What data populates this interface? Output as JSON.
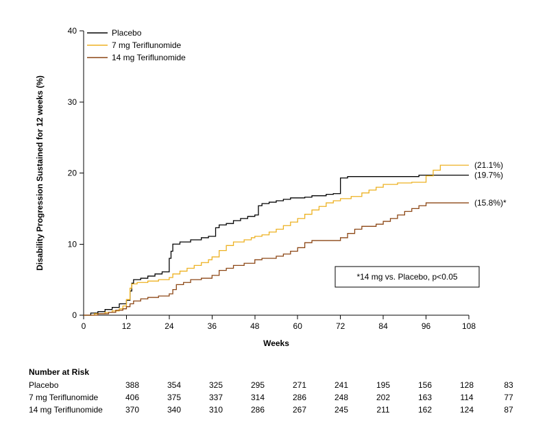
{
  "chart_data": {
    "type": "line",
    "subtype": "kaplan-meier-step",
    "title": "",
    "xlabel": "Weeks",
    "ylabel": "Disability Progression Sustained for 12 weeks (%)",
    "xlim": [
      0,
      108
    ],
    "ylim": [
      0,
      40
    ],
    "xticks": [
      0,
      12,
      24,
      36,
      48,
      60,
      72,
      84,
      96,
      108
    ],
    "yticks": [
      0,
      10,
      20,
      30,
      40
    ],
    "grid": false,
    "legend_position": "top-left-inside",
    "annotation": "*14 mg vs. Placebo, p<0.05",
    "series": [
      {
        "name": "Placebo",
        "color": "#000000",
        "end_label": "(19.7%)",
        "final_value": 19.7,
        "points": [
          [
            0,
            0
          ],
          [
            2,
            0.3
          ],
          [
            4,
            0.5
          ],
          [
            6,
            0.8
          ],
          [
            8,
            1.1
          ],
          [
            10,
            1.6
          ],
          [
            12,
            2.1
          ],
          [
            13,
            3.4
          ],
          [
            13.5,
            4.5
          ],
          [
            14,
            5.0
          ],
          [
            16,
            5.2
          ],
          [
            18,
            5.5
          ],
          [
            20,
            5.8
          ],
          [
            22,
            6.1
          ],
          [
            24,
            8.0
          ],
          [
            24.5,
            9.0
          ],
          [
            25,
            10.0
          ],
          [
            27,
            10.3
          ],
          [
            30,
            10.6
          ],
          [
            33,
            10.9
          ],
          [
            35,
            11.1
          ],
          [
            37,
            12.3
          ],
          [
            38,
            12.7
          ],
          [
            40,
            12.9
          ],
          [
            42,
            13.3
          ],
          [
            44,
            13.6
          ],
          [
            46,
            13.9
          ],
          [
            48,
            14.1
          ],
          [
            49,
            15.4
          ],
          [
            50,
            15.7
          ],
          [
            52,
            15.9
          ],
          [
            54,
            16.1
          ],
          [
            56,
            16.3
          ],
          [
            58,
            16.5
          ],
          [
            62,
            16.6
          ],
          [
            64,
            16.8
          ],
          [
            68,
            17.0
          ],
          [
            70,
            17.1
          ],
          [
            72,
            19.3
          ],
          [
            74,
            19.5
          ],
          [
            94,
            19.7
          ]
        ]
      },
      {
        "name": "7 mg Teriflunomide",
        "color": "#EDB120",
        "end_label": "(21.1%)",
        "final_value": 21.1,
        "points": [
          [
            0,
            0
          ],
          [
            3,
            0.2
          ],
          [
            6,
            0.4
          ],
          [
            8,
            0.6
          ],
          [
            10,
            0.9
          ],
          [
            11,
            1.3
          ],
          [
            12,
            2.2
          ],
          [
            13,
            3.8
          ],
          [
            13.5,
            4.4
          ],
          [
            15,
            4.6
          ],
          [
            18,
            4.8
          ],
          [
            21,
            5.0
          ],
          [
            24,
            5.3
          ],
          [
            25,
            5.8
          ],
          [
            27,
            6.2
          ],
          [
            29,
            6.6
          ],
          [
            31,
            7.0
          ],
          [
            33,
            7.4
          ],
          [
            35,
            7.8
          ],
          [
            36,
            8.2
          ],
          [
            38,
            9.1
          ],
          [
            40,
            9.8
          ],
          [
            42,
            10.3
          ],
          [
            45,
            10.6
          ],
          [
            47,
            10.9
          ],
          [
            48,
            11.1
          ],
          [
            50,
            11.3
          ],
          [
            52,
            11.7
          ],
          [
            54,
            12.1
          ],
          [
            56,
            12.6
          ],
          [
            58,
            13.1
          ],
          [
            60,
            13.6
          ],
          [
            62,
            14.2
          ],
          [
            64,
            14.8
          ],
          [
            66,
            15.3
          ],
          [
            68,
            15.8
          ],
          [
            70,
            16.1
          ],
          [
            72,
            16.4
          ],
          [
            75,
            16.7
          ],
          [
            78,
            17.2
          ],
          [
            80,
            17.6
          ],
          [
            82,
            18.0
          ],
          [
            84,
            18.4
          ],
          [
            88,
            18.6
          ],
          [
            92,
            18.7
          ],
          [
            96,
            19.6
          ],
          [
            98,
            20.4
          ],
          [
            100,
            21.1
          ]
        ]
      },
      {
        "name": "14 mg Teriflunomide",
        "color": "#8B4513",
        "end_label": "(15.8%)*",
        "final_value": 15.8,
        "points": [
          [
            0,
            0
          ],
          [
            4,
            0.2
          ],
          [
            7,
            0.4
          ],
          [
            9,
            0.7
          ],
          [
            11,
            0.9
          ],
          [
            12,
            1.2
          ],
          [
            13,
            1.6
          ],
          [
            14,
            2.0
          ],
          [
            16,
            2.3
          ],
          [
            18,
            2.5
          ],
          [
            21,
            2.7
          ],
          [
            24,
            3.0
          ],
          [
            25,
            3.6
          ],
          [
            26,
            4.3
          ],
          [
            28,
            4.6
          ],
          [
            30,
            5.0
          ],
          [
            33,
            5.2
          ],
          [
            36,
            5.6
          ],
          [
            38,
            6.3
          ],
          [
            40,
            6.6
          ],
          [
            42,
            7.0
          ],
          [
            45,
            7.3
          ],
          [
            48,
            7.8
          ],
          [
            50,
            8.0
          ],
          [
            54,
            8.3
          ],
          [
            56,
            8.6
          ],
          [
            58,
            9.0
          ],
          [
            60,
            9.5
          ],
          [
            62,
            10.2
          ],
          [
            64,
            10.5
          ],
          [
            72,
            10.9
          ],
          [
            74,
            11.5
          ],
          [
            76,
            12.1
          ],
          [
            78,
            12.5
          ],
          [
            82,
            12.8
          ],
          [
            84,
            13.2
          ],
          [
            86,
            13.6
          ],
          [
            88,
            14.1
          ],
          [
            90,
            14.6
          ],
          [
            92,
            15.0
          ],
          [
            94,
            15.4
          ],
          [
            96,
            15.8
          ]
        ]
      }
    ],
    "number_at_risk": {
      "title": "Number at Risk",
      "weeks": [
        0,
        12,
        24,
        36,
        48,
        60,
        72,
        84,
        96,
        108
      ],
      "rows": [
        {
          "label": "Placebo",
          "values": [
            388,
            354,
            325,
            295,
            271,
            241,
            195,
            156,
            128,
            83
          ]
        },
        {
          "label": "7 mg Teriflunomide",
          "values": [
            406,
            375,
            337,
            314,
            286,
            248,
            202,
            163,
            114,
            77
          ]
        },
        {
          "label": "14 mg Teriflunomide",
          "values": [
            370,
            340,
            310,
            286,
            267,
            245,
            211,
            162,
            124,
            87
          ]
        }
      ]
    }
  }
}
